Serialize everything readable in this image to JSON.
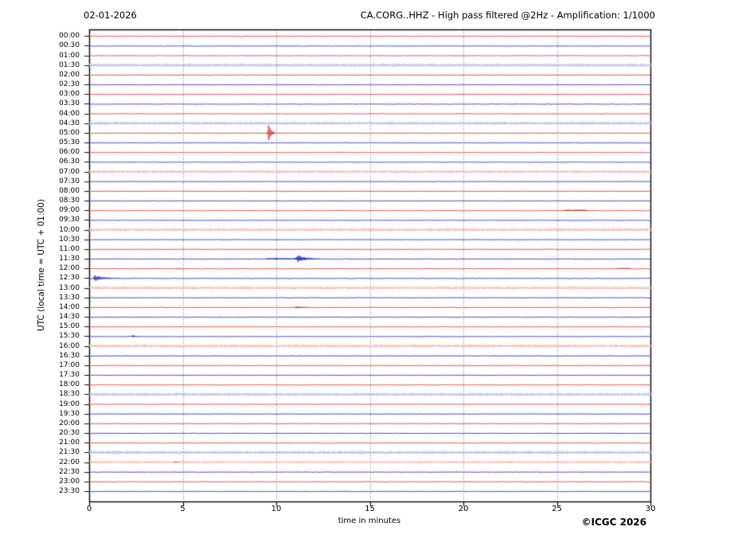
{
  "header": {
    "date": "02-01-2026",
    "title": "CA.CORG..HHZ - High pass filtered @2Hz - Amplification: 1/1000"
  },
  "chart_data": {
    "type": "line",
    "subtype": "helicorder-seismogram",
    "station": "CA.CORG..HHZ",
    "filter": "High pass filtered @2Hz",
    "amplification": "1/1000",
    "xlabel": "time in minutes",
    "ylabel": "UTC (local time = UTC + 01:00)",
    "copyright": "©ICGC 2026",
    "xlim": [
      0,
      30
    ],
    "x_ticks": [
      0,
      5,
      10,
      15,
      20,
      25,
      30
    ],
    "grid": "dotted vertical lines every 5 minutes",
    "minutes_per_row": 30,
    "colors": {
      "red_core": "#e05252",
      "red_fuzz": "#f09a9a",
      "red_light": "#f3b3b3",
      "red_event": "#d42a2a",
      "blue_core": "#4a4ad0",
      "blue_fuzz": "#9a9ae8",
      "blue_light": "#b0b4ee",
      "blue_event": "#2222c0",
      "grid": "#666666",
      "frame": "#000000"
    },
    "rows": [
      {
        "label": "00:00",
        "color": "red",
        "noise": 0.7
      },
      {
        "label": "00:30",
        "color": "blue",
        "noise": 0.7
      },
      {
        "label": "01:00",
        "color": "red",
        "noise": 0.7
      },
      {
        "label": "01:30",
        "color": "blue",
        "noise": 2.0
      },
      {
        "label": "02:00",
        "color": "red",
        "noise": 0.7
      },
      {
        "label": "02:30",
        "color": "blue",
        "noise": 0.7
      },
      {
        "label": "03:00",
        "color": "red",
        "noise": 0.7
      },
      {
        "label": "03:30",
        "color": "blue",
        "noise": 0.7
      },
      {
        "label": "04:00",
        "color": "red",
        "noise": 0.85
      },
      {
        "label": "04:30",
        "color": "blue",
        "noise": 2.0
      },
      {
        "label": "05:00",
        "color": "red",
        "noise": 0.7
      },
      {
        "label": "05:30",
        "color": "blue",
        "noise": 0.7
      },
      {
        "label": "06:00",
        "color": "red",
        "noise": 0.8
      },
      {
        "label": "06:30",
        "color": "blue",
        "noise": 0.7
      },
      {
        "label": "07:00",
        "color": "red",
        "noise": 1.9
      },
      {
        "label": "07:30",
        "color": "blue",
        "noise": 0.7
      },
      {
        "label": "08:00",
        "color": "red",
        "noise": 0.7
      },
      {
        "label": "08:30",
        "color": "blue",
        "noise": 0.7
      },
      {
        "label": "09:00",
        "color": "red",
        "noise": 0.7
      },
      {
        "label": "09:30",
        "color": "blue",
        "noise": 0.7
      },
      {
        "label": "10:00",
        "color": "red",
        "noise": 1.9
      },
      {
        "label": "10:30",
        "color": "blue",
        "noise": 0.7
      },
      {
        "label": "11:00",
        "color": "red",
        "noise": 0.7
      },
      {
        "label": "11:30",
        "color": "blue",
        "noise": 0.8
      },
      {
        "label": "12:00",
        "color": "red",
        "noise": 0.7
      },
      {
        "label": "12:30",
        "color": "blue",
        "noise": 0.8
      },
      {
        "label": "13:00",
        "color": "red",
        "noise": 1.9
      },
      {
        "label": "13:30",
        "color": "blue",
        "noise": 0.7
      },
      {
        "label": "14:00",
        "color": "red",
        "noise": 0.7
      },
      {
        "label": "14:30",
        "color": "blue",
        "noise": 0.7
      },
      {
        "label": "15:00",
        "color": "red",
        "noise": 0.7
      },
      {
        "label": "15:30",
        "color": "blue",
        "noise": 0.7
      },
      {
        "label": "16:00",
        "color": "red",
        "noise": 1.9
      },
      {
        "label": "16:30",
        "color": "blue",
        "noise": 0.7
      },
      {
        "label": "17:00",
        "color": "red",
        "noise": 0.7
      },
      {
        "label": "17:30",
        "color": "blue",
        "noise": 0.7
      },
      {
        "label": "18:00",
        "color": "red",
        "noise": 0.7
      },
      {
        "label": "18:30",
        "color": "blue",
        "noise": 1.8
      },
      {
        "label": "19:00",
        "color": "red",
        "noise": 0.7
      },
      {
        "label": "19:30",
        "color": "blue",
        "noise": 0.7
      },
      {
        "label": "20:00",
        "color": "red",
        "noise": 0.7
      },
      {
        "label": "20:30",
        "color": "blue",
        "noise": 0.7
      },
      {
        "label": "21:00",
        "color": "red",
        "noise": 0.7
      },
      {
        "label": "21:30",
        "color": "blue",
        "noise": 2.1
      },
      {
        "label": "22:00",
        "color": "red",
        "noise": 1.3
      },
      {
        "label": "22:30",
        "color": "blue",
        "noise": 0.7
      },
      {
        "label": "23:00",
        "color": "red",
        "noise": 0.8
      },
      {
        "label": "23:30",
        "color": "blue",
        "noise": 0.7
      }
    ],
    "events": [
      {
        "row": "05:00",
        "minute": 9.57,
        "amplitude": 13,
        "attack": 0.1,
        "tail": 0.35,
        "kind": "spike"
      },
      {
        "row": "09:00",
        "minute": 25.4,
        "amplitude": 1.0,
        "attack": 0,
        "tail": 1.2,
        "kind": "emergent"
      },
      {
        "row": "11:30",
        "minute": 9.45,
        "amplitude": 0.9,
        "attack": 0,
        "tail": 1.6,
        "kind": "noise"
      },
      {
        "row": "11:30",
        "minute": 11.15,
        "amplitude": 5.0,
        "attack": 0.25,
        "tail": 1.2,
        "kind": "burst"
      },
      {
        "row": "12:00",
        "minute": 4.7,
        "amplitude": 0.9,
        "attack": 0.05,
        "tail": 0.2,
        "kind": "burst"
      },
      {
        "row": "12:00",
        "minute": 28.2,
        "amplitude": 0.8,
        "attack": 0,
        "tail": 0.7,
        "kind": "emergent"
      },
      {
        "row": "12:30",
        "minute": 0.25,
        "amplitude": 4.2,
        "attack": 0.1,
        "tail": 1.4,
        "kind": "burst"
      },
      {
        "row": "14:00",
        "minute": 11.05,
        "amplitude": 1.7,
        "attack": 0.1,
        "tail": 0.7,
        "kind": "burst"
      },
      {
        "row": "15:30",
        "minute": 2.3,
        "amplitude": 2.2,
        "attack": 0.06,
        "tail": 0.3,
        "kind": "burst"
      },
      {
        "row": "22:00",
        "minute": 4.55,
        "amplitude": 1.2,
        "attack": 0.06,
        "tail": 0.35,
        "kind": "burst"
      }
    ]
  }
}
